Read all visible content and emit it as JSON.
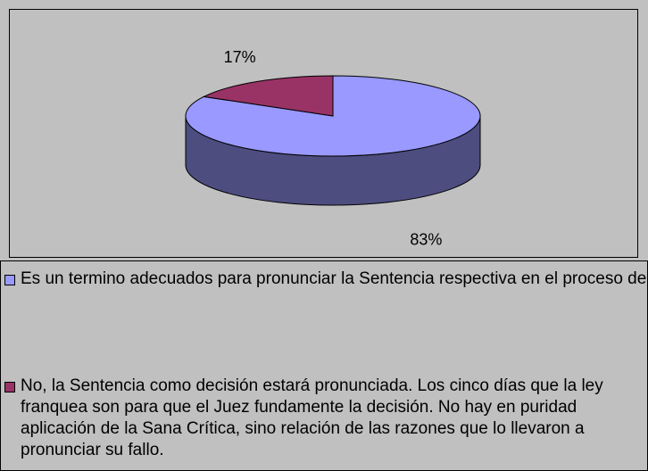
{
  "chart_data": {
    "type": "pie",
    "categories": [
      "Es un termino adecuados para pronunciar la Sentencia respectiva en el proceso de familia",
      "No, la Sentencia como decisión estará pronunciada. Los cinco días que la ley franquea son para que el Juez fundamente la decisión. No hay en puridad aplicación de la Sana Crítica, sino relación de las razones que lo llevaron a pronunciar su fallo."
    ],
    "values": [
      83,
      17
    ],
    "value_labels": [
      "83%",
      "17%"
    ],
    "colors": [
      "#9999ff",
      "#993366"
    ],
    "side_colors": [
      "#4d4d80",
      "#4d1a33"
    ]
  }
}
